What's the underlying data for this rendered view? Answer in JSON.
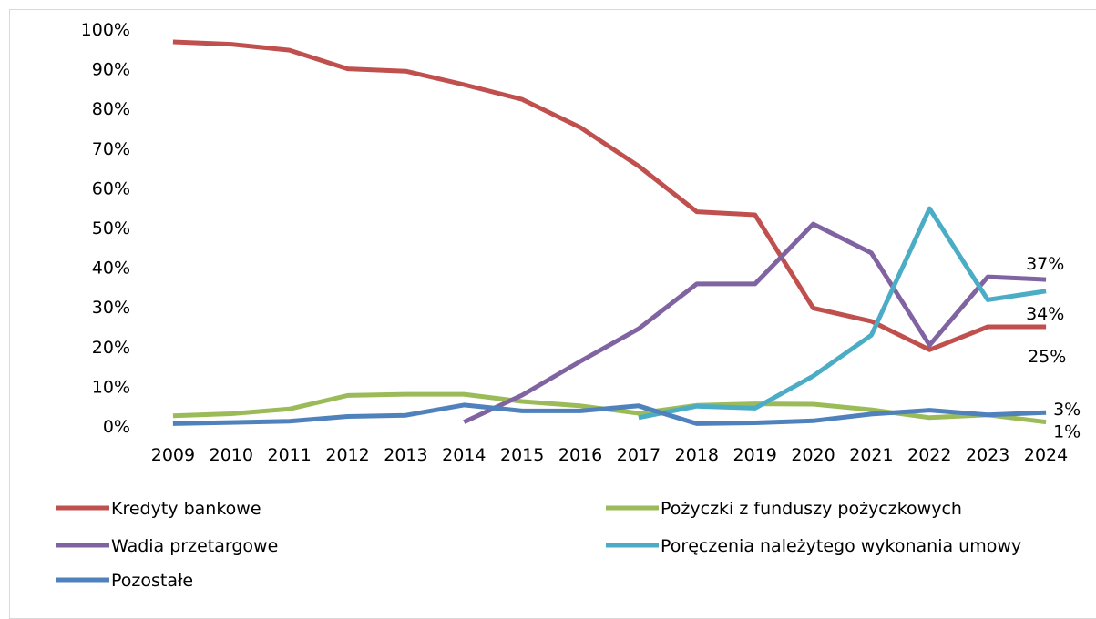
{
  "chart_data": {
    "type": "line",
    "title": "",
    "xlabel": "",
    "ylabel": "",
    "ylim": [
      0,
      100
    ],
    "y_ticks": [
      "0%",
      "10%",
      "20%",
      "30%",
      "40%",
      "50%",
      "60%",
      "70%",
      "80%",
      "90%",
      "100%"
    ],
    "categories": [
      "2009",
      "2010",
      "2011",
      "2012",
      "2013",
      "2014",
      "2015",
      "2016",
      "2017",
      "2018",
      "2019",
      "2020",
      "2021",
      "2022",
      "2023",
      "2024"
    ],
    "grid": false,
    "legend_position": "bottom",
    "series": [
      {
        "name": "Kredyty bankowe",
        "color": "#c0504d",
        "values": [
          96.8,
          96.2,
          94.7,
          90.0,
          89.4,
          86.0,
          82.3,
          75.2,
          65.5,
          54.0,
          53.2,
          29.7,
          26.4,
          19.2,
          25.0,
          25.0
        ],
        "end_label": "25%"
      },
      {
        "name": "Pożyczki z funduszy pożyczkowych",
        "color": "#9bbb59",
        "values": [
          2.6,
          3.1,
          4.3,
          7.7,
          8.0,
          8.0,
          6.2,
          5.1,
          3.2,
          5.2,
          5.6,
          5.5,
          4.1,
          2.1,
          2.8,
          1.0
        ],
        "end_label": "1%"
      },
      {
        "name": "Wadia przetargowe",
        "color": "#8064a2",
        "values": [
          null,
          null,
          null,
          null,
          null,
          1.0,
          7.8,
          16.3,
          24.5,
          35.8,
          35.8,
          50.9,
          43.6,
          20.4,
          37.6,
          36.9
        ],
        "end_label": "37%"
      },
      {
        "name": "Poręczenia należytego wykonania umowy",
        "color": "#4bacc6",
        "values": [
          null,
          null,
          null,
          null,
          null,
          null,
          null,
          null,
          2.1,
          5.0,
          4.5,
          12.6,
          22.9,
          54.8,
          31.8,
          34.0
        ],
        "end_label": "34%"
      },
      {
        "name": "Pozostałe",
        "color": "#4f81bd",
        "values": [
          0.6,
          0.9,
          1.2,
          2.4,
          2.7,
          5.3,
          3.8,
          3.8,
          5.1,
          0.6,
          0.8,
          1.3,
          3.0,
          4.0,
          2.8,
          3.4
        ],
        "end_label": "3%"
      }
    ]
  }
}
